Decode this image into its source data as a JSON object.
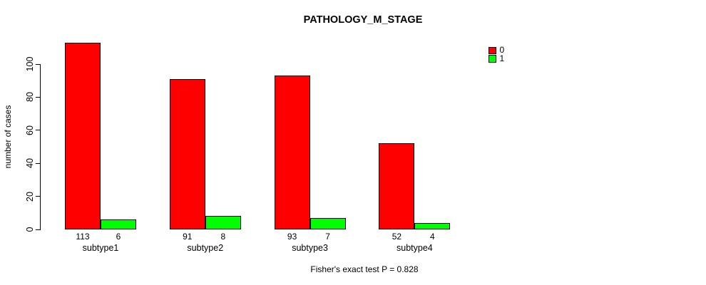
{
  "chart_data": {
    "type": "bar",
    "title": "PATHOLOGY_M_STAGE",
    "xlabel": "",
    "ylabel": "number of cases",
    "categories": [
      "subtype1",
      "subtype2",
      "subtype3",
      "subtype4"
    ],
    "series": [
      {
        "name": "0",
        "color": "#ff0000",
        "values": [
          113,
          91,
          93,
          52
        ]
      },
      {
        "name": "1",
        "color": "#00ff00",
        "values": [
          6,
          8,
          7,
          4
        ]
      }
    ],
    "yticks": [
      0,
      20,
      40,
      60,
      80,
      100
    ],
    "axis_range": [
      0,
      100
    ],
    "grid": false,
    "bar_value_labels": true,
    "legend_position": "outside-top-right",
    "annotation": "Fisher's exact test P = 0.828"
  },
  "colors": {
    "background": "#ffffff",
    "axis": "#000000",
    "text": "#000000",
    "series_0": "#ff0000",
    "series_1": "#00ff00"
  }
}
